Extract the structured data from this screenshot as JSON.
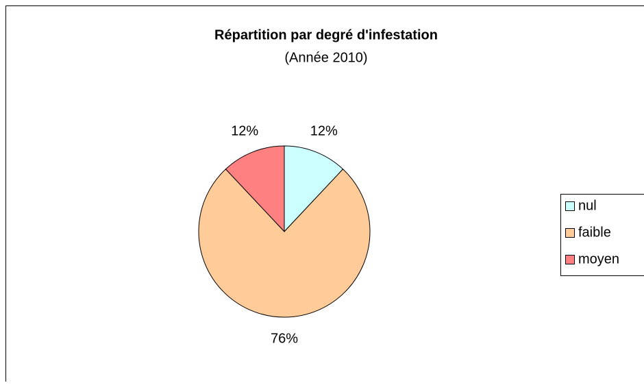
{
  "chart_data": {
    "type": "pie",
    "title": "Répartition par degré d'infestation",
    "subtitle": "(Année 2010)",
    "categories": [
      "nul",
      "faible",
      "moyen"
    ],
    "values": [
      12,
      76,
      12
    ],
    "value_labels": [
      "12%",
      "76%",
      "12%"
    ],
    "colors": [
      "#ccffff",
      "#ffcc99",
      "#ff8080"
    ],
    "legend": "right"
  }
}
